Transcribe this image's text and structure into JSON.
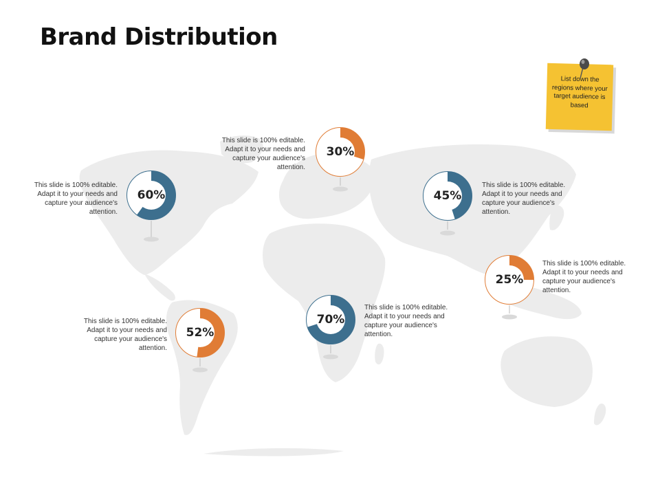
{
  "title": "Brand Distribution",
  "colors": {
    "blue": "#3d6f8e",
    "orange": "#e07c35",
    "track": "#ffffff",
    "map": "#ececec",
    "note": "#f5c232"
  },
  "note": {
    "text": "List down the regions where your target audience is based",
    "icon": "pushpin-icon"
  },
  "markers": [
    {
      "id": "north-america",
      "value": 60,
      "label": "60%",
      "color": "blue",
      "description": "This slide is 100% editable.  Adapt it to your needs and capture your audience's attention."
    },
    {
      "id": "europe",
      "value": 30,
      "label": "30%",
      "color": "orange",
      "description": "This slide is 100% editable.  Adapt it to your needs and capture your audience's attention."
    },
    {
      "id": "asia",
      "value": 45,
      "label": "45%",
      "color": "blue",
      "description": "This slide is 100% editable.  Adapt it to your needs and capture your audience's attention."
    },
    {
      "id": "southeast-asia",
      "value": 25,
      "label": "25%",
      "color": "orange",
      "description": "This slide is 100% editable.  Adapt it to your needs and capture your audience's attention."
    },
    {
      "id": "africa",
      "value": 70,
      "label": "70%",
      "color": "blue",
      "description": "This slide is 100% editable.  Adapt it to your needs and capture your audience's attention."
    },
    {
      "id": "south-america",
      "value": 52,
      "label": "52%",
      "color": "orange",
      "description": "This slide is 100% editable.  Adapt it to your needs and capture your audience's attention."
    }
  ]
}
